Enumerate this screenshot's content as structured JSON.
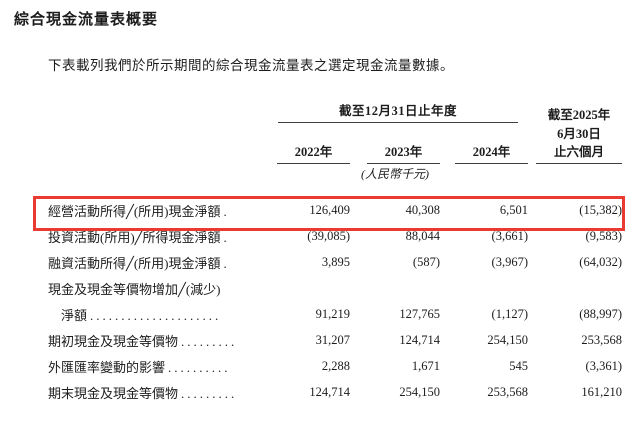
{
  "page": {
    "title": "綜合現金流量表概要",
    "intro": "下表載列我們於所示期間的綜合現金流量表之選定現金流量數據。"
  },
  "table": {
    "col_group_header": "截至12月31日止年度",
    "period_header_lines": [
      "截至2025年",
      "6月30日",
      "止六個月"
    ],
    "year_headers": [
      "2022年",
      "2023年",
      "2024年"
    ],
    "unit_note": "(人民幣千元)",
    "highlight_color": "#ea3b32",
    "rows": [
      {
        "label": "經營活動所得╱(所用)現金淨額",
        "leader": ".",
        "indent": false,
        "highlighted": true,
        "values": [
          "126,409",
          "40,308",
          "6,501",
          "(15,382)"
        ]
      },
      {
        "label": "投資活動(所用)╱所得現金淨額",
        "leader": ".",
        "indent": false,
        "highlighted": false,
        "values": [
          "(39,085)",
          "88,044",
          "(3,661)",
          "(9,583)"
        ]
      },
      {
        "label": "融資活動所得╱(所用)現金淨額",
        "leader": ".",
        "indent": false,
        "highlighted": false,
        "values": [
          "3,895",
          "(587)",
          "(3,967)",
          "(64,032)"
        ]
      },
      {
        "label": "現金及現金等價物增加╱(減少)",
        "leader": "",
        "indent": false,
        "highlighted": false,
        "values": [
          "",
          "",
          "",
          ""
        ]
      },
      {
        "label": "淨額",
        "leader": ".....................",
        "indent": true,
        "highlighted": false,
        "values": [
          "91,219",
          "127,765",
          "(1,127)",
          "(88,997)"
        ]
      },
      {
        "label": "期初現金及現金等價物",
        "leader": ".........",
        "indent": false,
        "highlighted": false,
        "values": [
          "31,207",
          "124,714",
          "254,150",
          "253,568"
        ]
      },
      {
        "label": "外匯匯率變動的影響",
        "leader": "..........",
        "indent": false,
        "highlighted": false,
        "values": [
          "2,288",
          "1,671",
          "545",
          "(3,361)"
        ]
      },
      {
        "label": "期末現金及現金等價物",
        "leader": ".........",
        "indent": false,
        "highlighted": false,
        "values": [
          "124,714",
          "254,150",
          "253,568",
          "161,210"
        ]
      }
    ]
  }
}
